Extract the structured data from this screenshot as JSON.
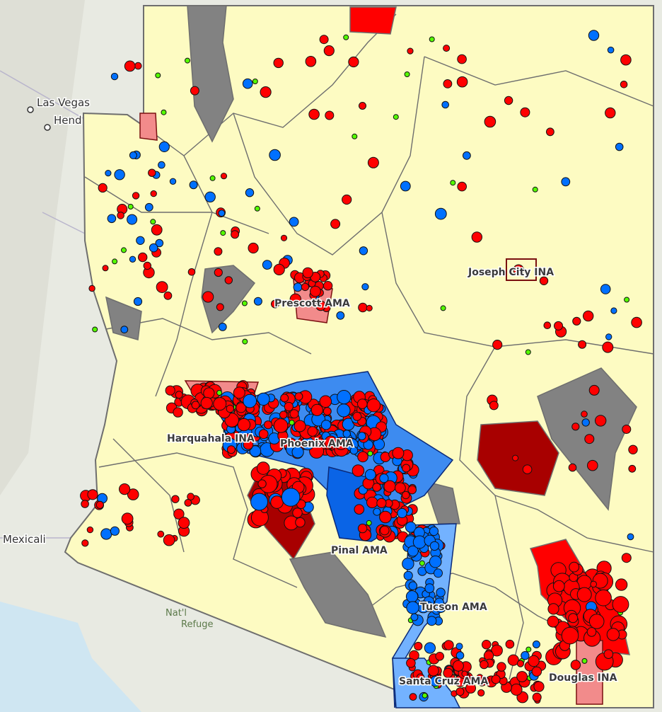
{
  "basemap": {
    "places": [
      "Las Vegas",
      "Hend",
      "Mexicali"
    ],
    "park_label": [
      "Nat'l",
      "Refuge"
    ]
  },
  "areas": {
    "ama_labels": [
      "Prescott AMA",
      "Phoenix AMA",
      "Pinal AMA",
      "Tucson AMA",
      "Santa Cruz AMA"
    ],
    "ina_labels": [
      "Joseph City INA",
      "Harquahala INA",
      "Douglas INA"
    ]
  },
  "colors": {
    "state_fill": "#fdfbc2",
    "basin_line": "#6e6e6e",
    "gray_basin": "#828282",
    "dark_red_basin": "#a80000",
    "red_basin": "#ff0000",
    "pink_basin": "#f28b8b",
    "ama_dark_blue": "#0a64e6",
    "ama_light_blue": "#73b2ff",
    "ama_outline": "#0b2a78",
    "well_decline": "#ff0000",
    "well_rise": "#0070ff",
    "well_stable": "#55ff00"
  }
}
